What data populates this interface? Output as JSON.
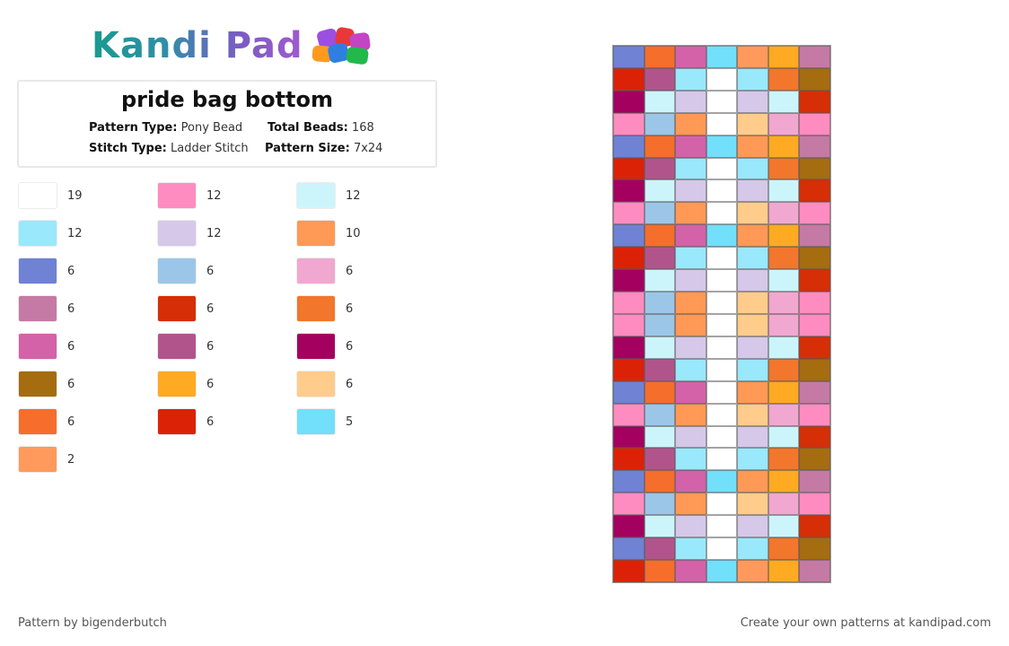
{
  "brand": {
    "name": "Kandi Pad"
  },
  "pattern": {
    "title": "pride bag bottom",
    "type_label": "Pattern Type:",
    "type_value": "Pony Bead",
    "total_label": "Total Beads:",
    "total_value": "168",
    "stitch_label": "Stitch Type:",
    "stitch_value": "Ladder Stitch",
    "size_label": "Pattern Size:",
    "size_value": "7x24"
  },
  "legend": [
    {
      "color": "#ffffff",
      "count": "19"
    },
    {
      "color": "#ff8cc0",
      "count": "12"
    },
    {
      "color": "#ccf5fb",
      "count": "12"
    },
    {
      "color": "#9ae8fb",
      "count": "12"
    },
    {
      "color": "#d6c8e8",
      "count": "12"
    },
    {
      "color": "#ff9955",
      "count": "10"
    },
    {
      "color": "#6f82d4",
      "count": "6"
    },
    {
      "color": "#9cc6e8",
      "count": "6"
    },
    {
      "color": "#f0a8d0",
      "count": "6"
    },
    {
      "color": "#c47aa4",
      "count": "6"
    },
    {
      "color": "#d62e06",
      "count": "6"
    },
    {
      "color": "#f2762c",
      "count": "6"
    },
    {
      "color": "#d462a8",
      "count": "6"
    },
    {
      "color": "#b2548c",
      "count": "6"
    },
    {
      "color": "#a40060",
      "count": "6"
    },
    {
      "color": "#a56c10",
      "count": "6"
    },
    {
      "color": "#ffaa22",
      "count": "6"
    },
    {
      "color": "#ffcc8c",
      "count": "6"
    },
    {
      "color": "#f56e2c",
      "count": "6"
    },
    {
      "color": "#dc2206",
      "count": "6"
    },
    {
      "color": "#72dffb",
      "count": "5"
    },
    {
      "color": "#ff9a5c",
      "count": "2"
    }
  ],
  "bead_grid": [
    [
      "#6f82d4",
      "#f56e2c",
      "#d462a8",
      "#72dffb",
      "#ff9a5c",
      "#ffaa22",
      "#c47aa4"
    ],
    [
      "#dc2206",
      "#b2548c",
      "#9ae8fb",
      "#ffffff",
      "#9ae8fb",
      "#f2762c",
      "#a56c10"
    ],
    [
      "#a40060",
      "#ccf5fb",
      "#d6c8e8",
      "#ffffff",
      "#d6c8e8",
      "#ccf5fb",
      "#d62e06"
    ],
    [
      "#ff8cc0",
      "#9cc6e8",
      "#ff9955",
      "#ffffff",
      "#ffcc8c",
      "#f0a8d0",
      "#ff8cc0"
    ],
    [
      "#6f82d4",
      "#f56e2c",
      "#d462a8",
      "#72dffb",
      "#ff9955",
      "#ffaa22",
      "#c47aa4"
    ],
    [
      "#dc2206",
      "#b2548c",
      "#9ae8fb",
      "#ffffff",
      "#9ae8fb",
      "#f2762c",
      "#a56c10"
    ],
    [
      "#a40060",
      "#ccf5fb",
      "#d6c8e8",
      "#ffffff",
      "#d6c8e8",
      "#ccf5fb",
      "#d62e06"
    ],
    [
      "#ff8cc0",
      "#9cc6e8",
      "#ff9955",
      "#ffffff",
      "#ffcc8c",
      "#f0a8d0",
      "#ff8cc0"
    ],
    [
      "#6f82d4",
      "#f56e2c",
      "#d462a8",
      "#72dffb",
      "#ff9955",
      "#ffaa22",
      "#c47aa4"
    ],
    [
      "#dc2206",
      "#b2548c",
      "#9ae8fb",
      "#ffffff",
      "#9ae8fb",
      "#f2762c",
      "#a56c10"
    ],
    [
      "#a40060",
      "#ccf5fb",
      "#d6c8e8",
      "#ffffff",
      "#d6c8e8",
      "#ccf5fb",
      "#d62e06"
    ],
    [
      "#ff8cc0",
      "#9cc6e8",
      "#ff9955",
      "#ffffff",
      "#ffcc8c",
      "#f0a8d0",
      "#ff8cc0"
    ],
    [
      "#ff8cc0",
      "#9cc6e8",
      "#ff9955",
      "#ffffff",
      "#ffcc8c",
      "#f0a8d0",
      "#ff8cc0"
    ],
    [
      "#a40060",
      "#ccf5fb",
      "#d6c8e8",
      "#ffffff",
      "#d6c8e8",
      "#ccf5fb",
      "#d62e06"
    ],
    [
      "#dc2206",
      "#b2548c",
      "#9ae8fb",
      "#ffffff",
      "#9ae8fb",
      "#f2762c",
      "#a56c10"
    ],
    [
      "#6f82d4",
      "#f56e2c",
      "#d462a8",
      "#ffffff",
      "#ff9955",
      "#ffaa22",
      "#c47aa4"
    ],
    [
      "#ff8cc0",
      "#9cc6e8",
      "#ff9955",
      "#ffffff",
      "#ffcc8c",
      "#f0a8d0",
      "#ff8cc0"
    ],
    [
      "#a40060",
      "#ccf5fb",
      "#d6c8e8",
      "#ffffff",
      "#d6c8e8",
      "#ccf5fb",
      "#d62e06"
    ],
    [
      "#dc2206",
      "#b2548c",
      "#9ae8fb",
      "#ffffff",
      "#9ae8fb",
      "#f2762c",
      "#a56c10"
    ],
    [
      "#6f82d4",
      "#f56e2c",
      "#d462a8",
      "#72dffb",
      "#ff9955",
      "#ffaa22",
      "#c47aa4"
    ],
    [
      "#ff8cc0",
      "#9cc6e8",
      "#ff9955",
      "#ffffff",
      "#ffcc8c",
      "#f0a8d0",
      "#ff8cc0"
    ],
    [
      "#a40060",
      "#ccf5fb",
      "#d6c8e8",
      "#ffffff",
      "#d6c8e8",
      "#ccf5fb",
      "#d62e06"
    ],
    [
      "#6f82d4",
      "#b2548c",
      "#9ae8fb",
      "#ffffff",
      "#9ae8fb",
      "#f2762c",
      "#a56c10"
    ],
    [
      "#dc2206",
      "#f56e2c",
      "#d462a8",
      "#72dffb",
      "#ff9a5c",
      "#ffaa22",
      "#c47aa4"
    ]
  ],
  "footer": {
    "author": "Pattern by bigenderbutch",
    "cta": "Create your own patterns at kandipad.com"
  }
}
